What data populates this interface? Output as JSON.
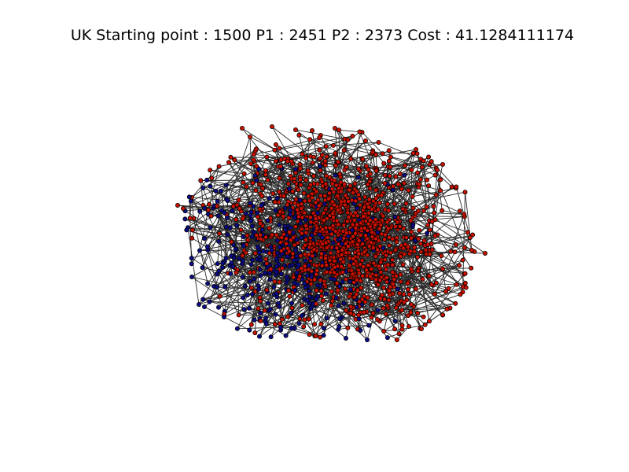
{
  "figure": {
    "title": "UK Starting point : 1500 P1 : 2451 P2 : 2373 Cost : 41.1284111174"
  },
  "graph": {
    "partition_colors": {
      "p1": "#cc1100",
      "p2": "#0b0b88",
      "edge": "#2b2b2b",
      "node_outline": "#000000"
    },
    "partition_sizes": {
      "p1": 2451,
      "p2": 2373
    },
    "starting_point": 1500,
    "cost": 41.1284111174
  }
}
